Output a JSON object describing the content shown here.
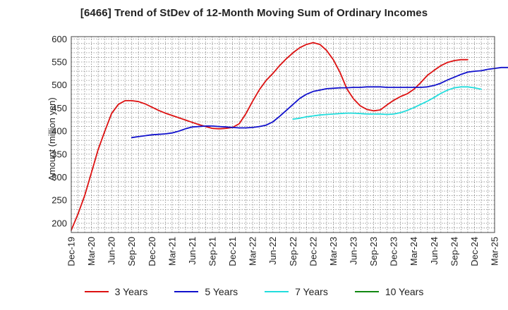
{
  "chart_data": {
    "type": "line",
    "title": "[6466]  Trend of StDev of 12-Month Moving Sum of Ordinary Incomes",
    "xlabel": "",
    "ylabel": "Amount (million yen)",
    "ylim": [
      180,
      605
    ],
    "yticks": [
      200,
      250,
      300,
      350,
      400,
      450,
      500,
      550,
      600
    ],
    "x_tick_labels": [
      "Dec-19",
      "Mar-20",
      "Jun-20",
      "Sep-20",
      "Dec-20",
      "Mar-21",
      "Jun-21",
      "Sep-21",
      "Dec-21",
      "Mar-22",
      "Jun-22",
      "Sep-22",
      "Dec-22",
      "Mar-23",
      "Jun-23",
      "Sep-23",
      "Dec-23",
      "Mar-24",
      "Jun-24",
      "Sep-24",
      "Dec-24",
      "Mar-25"
    ],
    "x_start": "Dec-19",
    "grid": true,
    "legend_position": "bottom",
    "series": [
      {
        "name": "3 Years",
        "color": "#dd1111",
        "start_offset": 0,
        "values": [
          185,
          220,
          260,
          310,
          360,
          400,
          438,
          458,
          466,
          466,
          464,
          459,
          452,
          445,
          439,
          434,
          429,
          424,
          419,
          414,
          410,
          406,
          405,
          406,
          408,
          416,
          438,
          465,
          490,
          510,
          525,
          542,
          557,
          570,
          581,
          588,
          592,
          588,
          575,
          555,
          527,
          492,
          470,
          455,
          447,
          444,
          446,
          457,
          467,
          475,
          481,
          491,
          505,
          521,
          532,
          542,
          549,
          553,
          555,
          555
        ]
      },
      {
        "name": "5 Years",
        "color": "#1111cc",
        "start_offset": 9,
        "values": [
          386,
          388,
          390,
          392,
          393,
          394,
          396,
          400,
          405,
          409,
          410,
          411,
          411,
          410,
          409,
          408,
          407,
          407,
          408,
          410,
          413,
          420,
          432,
          445,
          458,
          471,
          480,
          486,
          489,
          492,
          493,
          494,
          494,
          495,
          495,
          496,
          496,
          496,
          495,
          495,
          495,
          495,
          495,
          495,
          496,
          499,
          504,
          511,
          517,
          523,
          528,
          530,
          531,
          534,
          536,
          538,
          538,
          538,
          538
        ]
      },
      {
        "name": "7 Years",
        "color": "#22dddd",
        "start_offset": 33,
        "values": [
          426,
          428,
          431,
          433,
          435,
          436,
          437,
          438,
          439,
          439,
          438,
          437,
          437,
          437,
          436,
          437,
          440,
          445,
          451,
          458,
          465,
          473,
          482,
          489,
          494,
          496,
          496,
          494,
          491
        ]
      },
      {
        "name": "10 Years",
        "color": "#118811",
        "start_offset": 0,
        "values": []
      }
    ]
  }
}
